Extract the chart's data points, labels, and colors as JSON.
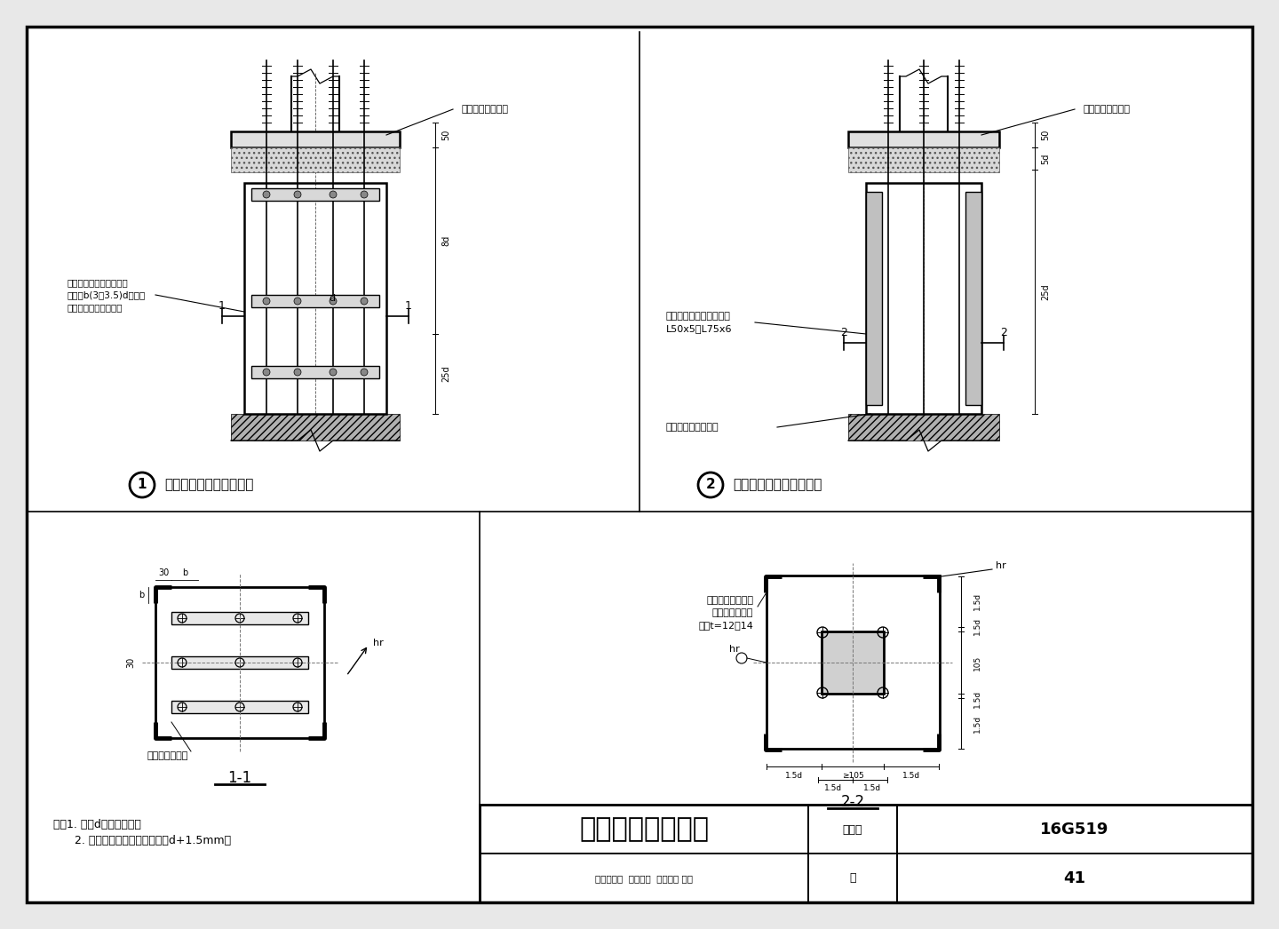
{
  "bg_color": "#e8e8e8",
  "page_bg": "#ffffff",
  "line_color": "#000000",
  "title_main": "柱脚锚栓固定支架",
  "title_collection_label": "图集号",
  "title_collection_num": "16G519",
  "title_page_label": "页",
  "title_page_num": "41",
  "notes_line1": "注：1. 图中d为锚栓直径。",
  "notes_line2": "      2. 在角钢或横隔板上的孔径取d+1.5mm。",
  "label1_title": "柱脚锚栓固定支架（一）",
  "label2_title": "柱脚锚栓固定支架（二）",
  "label3_title": "1-1",
  "label4_title": "2-2",
  "ann_wushousuo": "无收缩二次灌浆层",
  "ann_maodingzuo1_line1": "锚栓固定架角钢，通常角",
  "ann_maodingzuo1_line2": "钢肢宽b(3～3.5)d，肢厚",
  "ann_maodingzuo1_line3": "取相应型号中之最厚者",
  "ann_maodingzuo2_line1": "锚栓固定架角钢，通常用",
  "ann_maodingzuo2_line2": "L50x5～L75x6",
  "ann_maodingzuo3": "锚栓固定架设置标高",
  "ann_dim_5d": "5d",
  "ann_dim_8d": "8d",
  "ann_dim_25d": "25d",
  "ann_dim_50": "50",
  "ann_dim_d": "d",
  "ann_crosssec_left_line1": "锚栓固定架横隔板",
  "ann_crosssec_left_line2": "（兼作锚固板）",
  "ann_crosssec_left_line3": "板厚t=12～14",
  "ann_crosssec_hr": "hr",
  "ann_crosssec_hr2": "hr",
  "ann_maoding_jiao": "锚栓固定架角钢",
  "title_row2": "审核郁银泉  校对王喆  设计刘岩 刘茏"
}
